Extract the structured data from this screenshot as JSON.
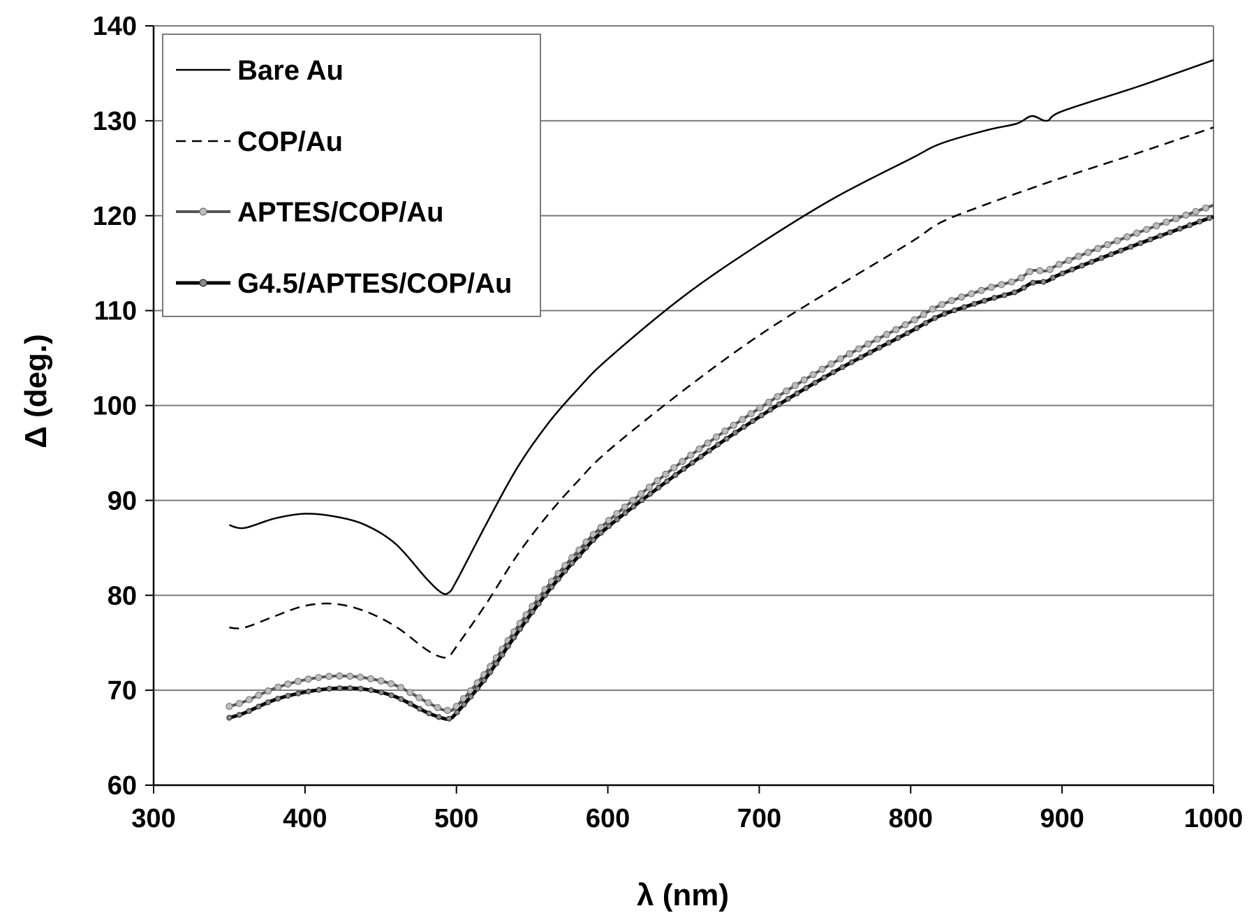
{
  "chart_data": {
    "type": "line",
    "title": "",
    "xlabel": "λ (nm)",
    "ylabel": "Δ (deg.)",
    "xlim": [
      300,
      1000
    ],
    "ylim": [
      60,
      140
    ],
    "x_ticks": [
      "300",
      "400",
      "500",
      "600",
      "700",
      "800",
      "900",
      "1000"
    ],
    "y_ticks": [
      "60",
      "70",
      "80",
      "90",
      "100",
      "110",
      "120",
      "130",
      "140"
    ],
    "grid": "horizontal",
    "legend_position": "top-left",
    "series": [
      {
        "name": "Bare Au",
        "style": "solid",
        "color": "#000000",
        "x": [
          350,
          360,
          380,
          400,
          420,
          440,
          460,
          480,
          490,
          495,
          500,
          520,
          540,
          560,
          580,
          600,
          650,
          700,
          750,
          800,
          820,
          850,
          870,
          880,
          890,
          900,
          950,
          1000
        ],
        "y": [
          87.4,
          87.1,
          88.1,
          88.6,
          88.3,
          87.4,
          85.4,
          81.8,
          80.3,
          80.3,
          81.5,
          87.6,
          93.4,
          98.0,
          101.7,
          104.9,
          111.5,
          117.0,
          121.9,
          126.0,
          127.6,
          129.0,
          129.7,
          130.5,
          130.0,
          131.0,
          133.6,
          136.4
        ]
      },
      {
        "name": "COP/Au",
        "style": "dashed",
        "color": "#000000",
        "x": [
          350,
          360,
          380,
          400,
          420,
          440,
          460,
          480,
          490,
          495,
          500,
          520,
          540,
          560,
          580,
          600,
          650,
          700,
          750,
          800,
          820,
          850,
          880,
          900,
          950,
          1000
        ],
        "y": [
          76.6,
          76.6,
          77.8,
          78.9,
          79.1,
          78.3,
          76.7,
          74.3,
          73.5,
          73.6,
          74.6,
          79.2,
          84.2,
          88.4,
          92.0,
          95.2,
          101.6,
          107.4,
          112.4,
          117.2,
          119.3,
          121.2,
          122.9,
          124.0,
          126.6,
          129.3
        ]
      },
      {
        "name": "APTES/COP/Au",
        "style": "solid-markers",
        "color": "#555555",
        "x": [
          350,
          360,
          380,
          400,
          420,
          440,
          460,
          480,
          490,
          495,
          500,
          520,
          540,
          560,
          580,
          600,
          650,
          700,
          750,
          800,
          820,
          850,
          870,
          880,
          890,
          900,
          950,
          1000
        ],
        "y": [
          68.3,
          68.8,
          70.2,
          71.1,
          71.5,
          71.3,
          70.5,
          68.8,
          68.0,
          67.9,
          68.3,
          72.0,
          76.6,
          80.9,
          84.6,
          87.8,
          94.2,
          99.7,
          104.6,
          108.8,
          110.6,
          112.3,
          113.2,
          114.2,
          114.2,
          115.0,
          118.2,
          121.1
        ]
      },
      {
        "name": "G4.5/APTES/COP/Au",
        "style": "solid-markers",
        "color": "#000000",
        "x": [
          350,
          360,
          380,
          400,
          420,
          440,
          460,
          480,
          490,
          495,
          500,
          520,
          540,
          560,
          580,
          600,
          650,
          700,
          750,
          800,
          820,
          850,
          870,
          880,
          890,
          900,
          950,
          1000
        ],
        "y": [
          67.1,
          67.6,
          69.0,
          69.8,
          70.2,
          70.1,
          69.3,
          67.7,
          67.1,
          67.0,
          67.6,
          71.4,
          76.0,
          80.3,
          84.0,
          87.2,
          93.3,
          98.8,
          103.6,
          107.8,
          109.5,
          111.1,
          112.0,
          112.9,
          113.1,
          113.9,
          117.0,
          119.9
        ]
      }
    ]
  }
}
